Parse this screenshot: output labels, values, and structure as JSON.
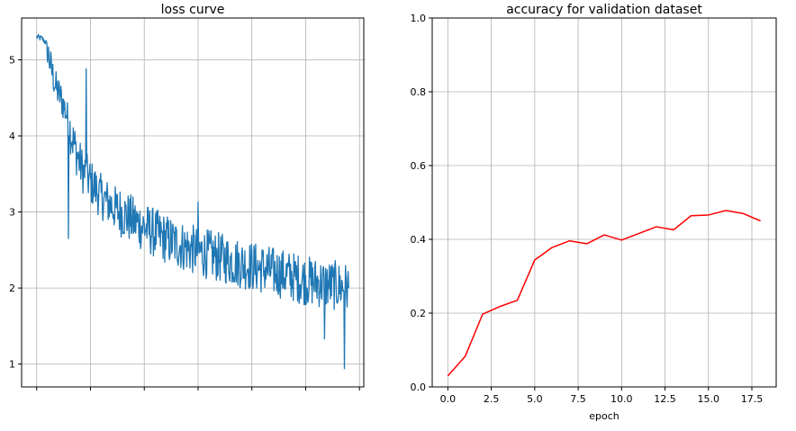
{
  "chart_data": [
    {
      "type": "line",
      "title": "loss curve",
      "xlabel": "",
      "ylabel": "",
      "grid": true,
      "xlim": [
        -28,
        608
      ],
      "ylim": [
        0.7,
        5.55
      ],
      "x_ticks_labeled": false,
      "y_ticks": [
        1,
        2,
        3,
        4,
        5
      ],
      "series": [
        {
          "color": "#1f77b4",
          "keypoints": [
            [
              0,
              5.3
            ],
            [
              10,
              5.28
            ],
            [
              18,
              5.22
            ],
            [
              25,
              4.95
            ],
            [
              35,
              4.65
            ],
            [
              45,
              4.5
            ],
            [
              55,
              4.3
            ],
            [
              65,
              4.0
            ],
            [
              75,
              3.75
            ],
            [
              85,
              3.55
            ],
            [
              100,
              3.4
            ],
            [
              120,
              3.2
            ],
            [
              140,
              3.08
            ],
            [
              160,
              2.98
            ],
            [
              180,
              2.88
            ],
            [
              200,
              2.8
            ],
            [
              230,
              2.68
            ],
            [
              260,
              2.58
            ],
            [
              300,
              2.48
            ],
            [
              340,
              2.4
            ],
            [
              380,
              2.32
            ],
            [
              420,
              2.25
            ],
            [
              460,
              2.18
            ],
            [
              500,
              2.1
            ],
            [
              540,
              2.05
            ],
            [
              580,
              2.0
            ]
          ],
          "spikes": [
            [
              59,
              2.65
            ],
            [
              92,
              4.88
            ],
            [
              145,
              2.92
            ],
            [
              300,
              3.13
            ],
            [
              572,
              0.94
            ],
            [
              535,
              1.33
            ]
          ]
        }
      ]
    },
    {
      "type": "line",
      "title": "accuracy for validation dataset",
      "xlabel": "epoch",
      "ylabel": "",
      "grid": true,
      "xlim": [
        -0.9,
        18.9
      ],
      "ylim": [
        0.0,
        1.0
      ],
      "x_ticks": [
        "0.0",
        "2.5",
        "5.0",
        "7.5",
        "10.0",
        "12.5",
        "15.0",
        "17.5"
      ],
      "y_ticks": [
        "0.0",
        "0.2",
        "0.4",
        "0.6",
        "0.8",
        "1.0"
      ],
      "series": [
        {
          "color": "#ff0000",
          "x": [
            0,
            1,
            2,
            3,
            4,
            5,
            6,
            7,
            8,
            9,
            10,
            11,
            12,
            13,
            14,
            15,
            16,
            17,
            18
          ],
          "y": [
            0.03,
            0.083,
            0.197,
            0.218,
            0.235,
            0.344,
            0.378,
            0.396,
            0.388,
            0.412,
            0.398,
            0.416,
            0.434,
            0.426,
            0.464,
            0.466,
            0.478,
            0.47,
            0.45
          ]
        }
      ]
    }
  ]
}
